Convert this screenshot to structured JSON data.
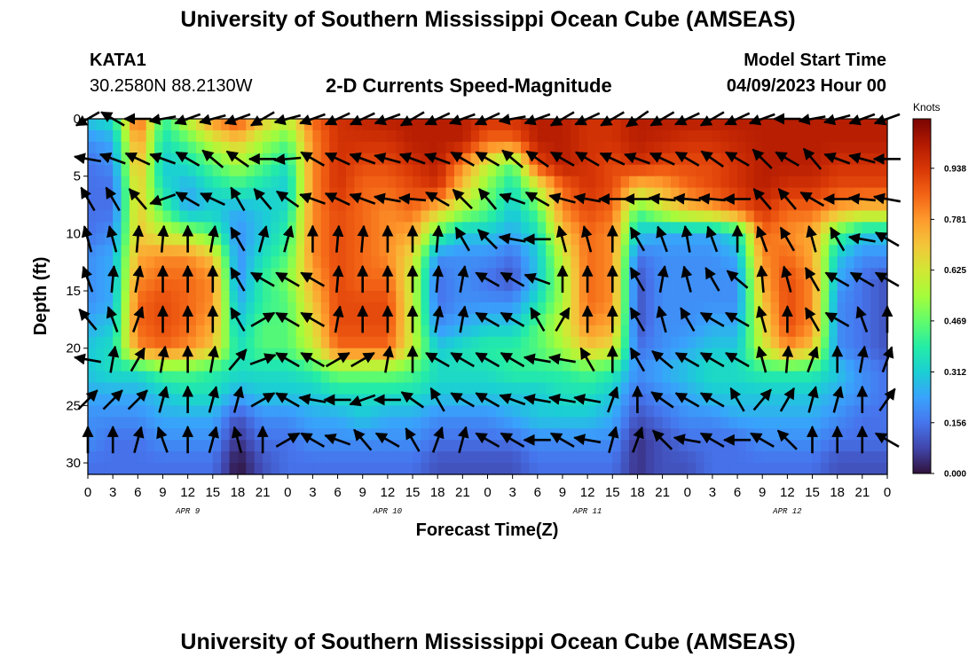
{
  "page": {
    "title_top": "University of Southern Mississippi Ocean Cube (AMSEAS)",
    "title_bottom": "University of Southern Mississippi Ocean Cube (AMSEAS)",
    "station_id": "KATA1",
    "station_coords": "30.2580N  88.2130W",
    "subtitle": "2-D Currents Speed-Magnitude",
    "model_start_label": "Model Start Time",
    "model_start_value": "04/09/2023 Hour 00"
  },
  "colors": {
    "colormap": [
      "#30123b",
      "#4145ab",
      "#4675ed",
      "#39a2fc",
      "#1bcfd4",
      "#24eca6",
      "#61fc6c",
      "#a4fc3b",
      "#d1e834",
      "#f3c63a",
      "#fe9b2d",
      "#f36315",
      "#d93806",
      "#b11901",
      "#7a0402"
    ],
    "arrow": "#000000"
  },
  "chart_data": {
    "type": "heatmap",
    "xlabel": "Forecast Time(Z)",
    "ylabel": "Depth (ft)",
    "x_tick_labels": [
      "0",
      "3",
      "6",
      "9",
      "12",
      "15",
      "18",
      "21",
      "0",
      "3",
      "6",
      "9",
      "12",
      "15",
      "18",
      "21",
      "0",
      "3",
      "6",
      "9",
      "12",
      "15",
      "18",
      "21",
      "0",
      "3",
      "6",
      "9",
      "12",
      "15",
      "18",
      "21",
      "0"
    ],
    "x_range_hours": [
      0,
      96
    ],
    "day_labels": [
      {
        "label": "APR 9",
        "hour": 12
      },
      {
        "label": "APR 10",
        "hour": 36
      },
      {
        "label": "APR 11",
        "hour": 60
      },
      {
        "label": "APR 12",
        "hour": 84
      }
    ],
    "y_ticks": [
      0,
      5,
      10,
      15,
      20,
      25,
      30
    ],
    "y_range_ft": [
      0,
      31
    ],
    "y_reversed": true,
    "colorbar": {
      "unit_label": "Knots",
      "ticks": [
        0.0,
        0.156,
        0.312,
        0.469,
        0.625,
        0.781,
        0.938
      ],
      "tick_labels": [
        "0.000",
        "0.156",
        "0.312",
        "0.469",
        "0.625",
        "0.781",
        "0.938"
      ],
      "range": [
        0,
        1.09
      ]
    },
    "time_hours": [
      0,
      3,
      6,
      9,
      12,
      15,
      18,
      21,
      24,
      27,
      30,
      33,
      36,
      39,
      42,
      45,
      48,
      51,
      54,
      57,
      60,
      63,
      66,
      69,
      72,
      75,
      78,
      81,
      84,
      87,
      90,
      93,
      96
    ],
    "depth_ft": [
      0,
      2,
      4,
      6,
      8,
      10,
      12,
      14,
      16,
      18,
      20,
      22,
      24,
      26,
      28,
      30
    ],
    "speed_knots": [
      [
        0.3,
        0.35,
        0.9,
        0.4,
        0.6,
        0.8,
        0.9,
        0.7,
        0.6,
        0.85,
        0.95,
        0.98,
        1.0,
        1.0,
        1.0,
        1.0,
        0.95,
        0.95,
        1.0,
        1.0,
        0.95,
        0.95,
        1.0,
        1.0,
        1.0,
        1.0,
        1.0,
        1.0,
        1.0,
        1.0,
        1.0,
        1.0,
        1.0
      ],
      [
        0.2,
        0.25,
        0.8,
        0.35,
        0.45,
        0.6,
        0.7,
        0.55,
        0.45,
        0.8,
        0.95,
        0.95,
        0.95,
        1.0,
        1.0,
        1.0,
        0.85,
        0.85,
        1.0,
        1.0,
        0.95,
        0.95,
        1.0,
        0.98,
        0.95,
        0.95,
        0.98,
        1.0,
        1.0,
        1.0,
        1.0,
        1.0,
        1.0
      ],
      [
        0.15,
        0.2,
        0.75,
        0.3,
        0.35,
        0.45,
        0.55,
        0.45,
        0.35,
        0.8,
        0.95,
        0.9,
        0.9,
        0.95,
        1.0,
        0.8,
        0.6,
        0.45,
        0.9,
        1.0,
        0.95,
        0.9,
        0.95,
        0.9,
        0.9,
        0.9,
        0.95,
        1.0,
        1.0,
        1.0,
        0.95,
        0.95,
        0.95
      ],
      [
        0.15,
        0.15,
        0.7,
        0.35,
        0.25,
        0.35,
        0.4,
        0.35,
        0.3,
        0.8,
        0.95,
        0.85,
        0.85,
        0.9,
        0.95,
        0.7,
        0.5,
        0.35,
        0.6,
        0.85,
        0.95,
        0.9,
        0.7,
        0.75,
        0.85,
        0.9,
        0.95,
        1.0,
        0.95,
        0.95,
        0.9,
        0.9,
        0.9
      ],
      [
        0.15,
        0.15,
        0.7,
        0.45,
        0.25,
        0.3,
        0.25,
        0.3,
        0.35,
        0.8,
        0.9,
        0.85,
        0.8,
        0.85,
        0.7,
        0.55,
        0.45,
        0.3,
        0.45,
        0.8,
        0.9,
        0.85,
        0.45,
        0.6,
        0.7,
        0.75,
        0.85,
        0.95,
        0.85,
        0.85,
        0.75,
        0.7,
        0.7
      ],
      [
        0.15,
        0.2,
        0.7,
        0.6,
        0.55,
        0.45,
        0.2,
        0.3,
        0.4,
        0.8,
        0.9,
        0.85,
        0.8,
        0.75,
        0.45,
        0.3,
        0.3,
        0.25,
        0.35,
        0.7,
        0.85,
        0.8,
        0.3,
        0.25,
        0.25,
        0.25,
        0.35,
        0.85,
        0.8,
        0.75,
        0.45,
        0.3,
        0.3
      ],
      [
        0.2,
        0.25,
        0.75,
        0.8,
        0.8,
        0.7,
        0.2,
        0.35,
        0.45,
        0.8,
        0.9,
        0.85,
        0.8,
        0.65,
        0.2,
        0.2,
        0.2,
        0.15,
        0.3,
        0.6,
        0.85,
        0.8,
        0.15,
        0.2,
        0.2,
        0.2,
        0.25,
        0.8,
        0.85,
        0.75,
        0.3,
        0.2,
        0.2
      ],
      [
        0.2,
        0.25,
        0.8,
        0.85,
        0.85,
        0.8,
        0.2,
        0.4,
        0.5,
        0.75,
        0.9,
        0.85,
        0.85,
        0.6,
        0.15,
        0.2,
        0.15,
        0.1,
        0.3,
        0.55,
        0.85,
        0.8,
        0.1,
        0.2,
        0.2,
        0.2,
        0.2,
        0.75,
        0.9,
        0.8,
        0.25,
        0.15,
        0.1
      ],
      [
        0.2,
        0.25,
        0.85,
        0.9,
        0.85,
        0.8,
        0.25,
        0.4,
        0.45,
        0.7,
        0.9,
        0.9,
        0.9,
        0.6,
        0.15,
        0.2,
        0.2,
        0.2,
        0.35,
        0.55,
        0.85,
        0.8,
        0.1,
        0.2,
        0.2,
        0.2,
        0.2,
        0.7,
        0.9,
        0.8,
        0.2,
        0.15,
        0.1
      ],
      [
        0.25,
        0.3,
        0.85,
        0.9,
        0.85,
        0.75,
        0.3,
        0.45,
        0.45,
        0.65,
        0.9,
        0.9,
        0.9,
        0.6,
        0.2,
        0.25,
        0.3,
        0.3,
        0.45,
        0.6,
        0.8,
        0.75,
        0.1,
        0.2,
        0.2,
        0.25,
        0.25,
        0.65,
        0.9,
        0.8,
        0.2,
        0.15,
        0.1
      ],
      [
        0.3,
        0.35,
        0.8,
        0.85,
        0.8,
        0.7,
        0.35,
        0.45,
        0.45,
        0.6,
        0.85,
        0.85,
        0.85,
        0.6,
        0.3,
        0.35,
        0.4,
        0.4,
        0.45,
        0.55,
        0.7,
        0.65,
        0.15,
        0.2,
        0.25,
        0.3,
        0.3,
        0.6,
        0.8,
        0.7,
        0.2,
        0.15,
        0.1
      ],
      [
        0.3,
        0.35,
        0.35,
        0.45,
        0.45,
        0.4,
        0.35,
        0.35,
        0.35,
        0.4,
        0.5,
        0.5,
        0.5,
        0.45,
        0.35,
        0.35,
        0.35,
        0.4,
        0.4,
        0.4,
        0.45,
        0.4,
        0.2,
        0.25,
        0.3,
        0.35,
        0.35,
        0.4,
        0.4,
        0.4,
        0.3,
        0.2,
        0.15
      ],
      [
        0.25,
        0.25,
        0.25,
        0.3,
        0.35,
        0.35,
        0.25,
        0.3,
        0.3,
        0.3,
        0.35,
        0.35,
        0.35,
        0.35,
        0.3,
        0.3,
        0.3,
        0.3,
        0.3,
        0.35,
        0.35,
        0.3,
        0.15,
        0.2,
        0.25,
        0.3,
        0.3,
        0.3,
        0.3,
        0.3,
        0.25,
        0.2,
        0.15
      ],
      [
        0.2,
        0.2,
        0.2,
        0.25,
        0.25,
        0.25,
        0.1,
        0.2,
        0.2,
        0.25,
        0.25,
        0.3,
        0.25,
        0.25,
        0.2,
        0.2,
        0.2,
        0.25,
        0.3,
        0.3,
        0.3,
        0.25,
        0.1,
        0.15,
        0.2,
        0.2,
        0.25,
        0.25,
        0.25,
        0.25,
        0.2,
        0.15,
        0.15
      ],
      [
        0.2,
        0.15,
        0.15,
        0.2,
        0.2,
        0.2,
        0.05,
        0.15,
        0.15,
        0.2,
        0.2,
        0.2,
        0.2,
        0.2,
        0.15,
        0.15,
        0.15,
        0.15,
        0.2,
        0.2,
        0.2,
        0.2,
        0.05,
        0.1,
        0.15,
        0.15,
        0.15,
        0.2,
        0.2,
        0.2,
        0.15,
        0.15,
        0.15
      ],
      [
        0.15,
        0.15,
        0.15,
        0.15,
        0.15,
        0.15,
        0.0,
        0.1,
        0.15,
        0.15,
        0.15,
        0.15,
        0.15,
        0.15,
        0.1,
        0.1,
        0.1,
        0.1,
        0.15,
        0.15,
        0.15,
        0.15,
        0.05,
        0.1,
        0.1,
        0.15,
        0.15,
        0.15,
        0.15,
        0.15,
        0.1,
        0.1,
        0.1
      ]
    ],
    "vector_depths_ft": [
      0,
      3.5,
      7,
      10.5,
      14,
      17.5,
      21,
      24.5,
      28
    ],
    "vector_direction_deg": [
      [
        240,
        300,
        270,
        260,
        250,
        255,
        250,
        240,
        255,
        250,
        245,
        245,
        250,
        240,
        245,
        250,
        245,
        260,
        250,
        240,
        245,
        240,
        235,
        240,
        245,
        240,
        245,
        250,
        270,
        260,
        255,
        250,
        250
      ],
      [
        280,
        290,
        295,
        290,
        300,
        310,
        305,
        270,
        265,
        300,
        295,
        290,
        285,
        290,
        290,
        300,
        300,
        310,
        305,
        300,
        300,
        295,
        290,
        295,
        300,
        305,
        300,
        315,
        300,
        320,
        290,
        285,
        270
      ],
      [
        330,
        330,
        320,
        250,
        300,
        295,
        330,
        320,
        305,
        290,
        295,
        290,
        280,
        275,
        300,
        315,
        320,
        290,
        300,
        285,
        280,
        270,
        270,
        275,
        275,
        275,
        270,
        320,
        320,
        300,
        270,
        275,
        280
      ],
      [
        345,
        345,
        5,
        5,
        0,
        10,
        330,
        15,
        15,
        0,
        5,
        5,
        0,
        0,
        5,
        330,
        315,
        280,
        270,
        345,
        345,
        0,
        330,
        340,
        350,
        340,
        0,
        340,
        330,
        345,
        330,
        280,
        300
      ],
      [
        340,
        5,
        10,
        0,
        0,
        0,
        330,
        300,
        300,
        300,
        5,
        0,
        0,
        0,
        5,
        10,
        300,
        300,
        290,
        0,
        0,
        0,
        330,
        10,
        345,
        330,
        310,
        355,
        345,
        330,
        300,
        300,
        300
      ],
      [
        320,
        340,
        20,
        0,
        0,
        0,
        330,
        60,
        300,
        300,
        10,
        0,
        0,
        0,
        10,
        10,
        300,
        300,
        330,
        30,
        0,
        0,
        330,
        345,
        330,
        300,
        300,
        345,
        0,
        330,
        300,
        340,
        0
      ],
      [
        280,
        10,
        30,
        10,
        0,
        10,
        40,
        70,
        300,
        300,
        60,
        60,
        10,
        0,
        300,
        300,
        300,
        300,
        280,
        280,
        330,
        0,
        330,
        310,
        300,
        300,
        300,
        345,
        5,
        20,
        0,
        10,
        20
      ],
      [
        45,
        45,
        45,
        15,
        0,
        15,
        15,
        60,
        300,
        280,
        270,
        250,
        270,
        305,
        330,
        300,
        300,
        290,
        280,
        280,
        280,
        20,
        0,
        305,
        300,
        300,
        330,
        40,
        30,
        15,
        15,
        0,
        35
      ],
      [
        0,
        0,
        15,
        340,
        0,
        15,
        345,
        0,
        60,
        300,
        290,
        320,
        300,
        330,
        20,
        15,
        300,
        300,
        270,
        300,
        280,
        15,
        20,
        315,
        280,
        300,
        270,
        300,
        315,
        0,
        0,
        0,
        300
      ]
    ]
  }
}
